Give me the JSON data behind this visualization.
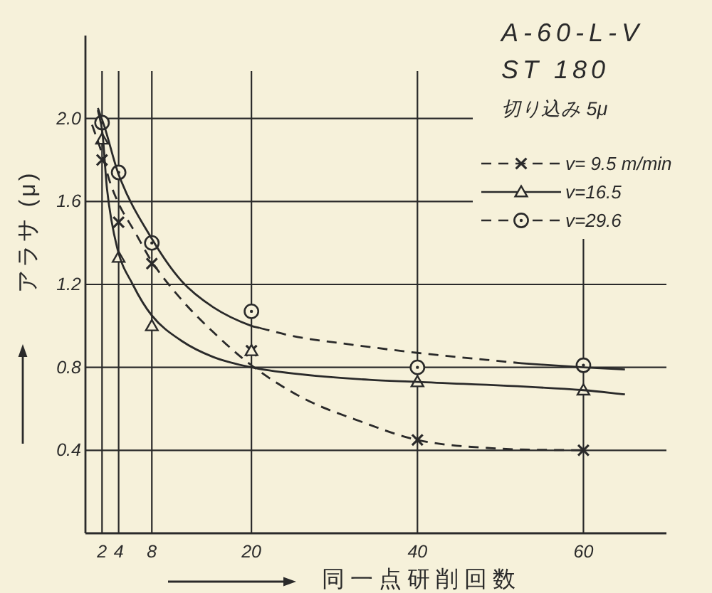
{
  "chart_data": {
    "type": "scatter",
    "title": "A-60-L-V",
    "subtitle": "ST 180",
    "annotations": [
      "切り込み 5μ"
    ],
    "xlabel": "同一点研削回数",
    "ylabel": "アラサ (μ)",
    "x": [
      2,
      4,
      8,
      20,
      40,
      60
    ],
    "xlim": [
      0,
      70
    ],
    "ylim": [
      0,
      2.4
    ],
    "xticks": [
      2,
      4,
      8,
      20,
      40,
      60
    ],
    "yticks": [
      0.4,
      0.8,
      1.2,
      1.6,
      {
        "value": 2,
        "label": "2.0"
      }
    ],
    "grid": true,
    "legend": "top right",
    "series": [
      {
        "name": "v= 9.5 m/min",
        "marker": "cross",
        "line_style": "dashed",
        "color": "#2a2a2a",
        "values": [
          1.8,
          1.5,
          1.3,
          0.88,
          0.45,
          0.4
        ]
      },
      {
        "name": "v=16.5",
        "marker": "triangle",
        "line_style": "solid",
        "color": "#2a2a2a",
        "values": [
          1.9,
          1.33,
          1.0,
          0.88,
          0.73,
          0.69
        ]
      },
      {
        "name": "v=29.6",
        "marker": "circle",
        "line_style": "dashed",
        "color": "#2a2a2a",
        "values": [
          1.98,
          1.74,
          1.4,
          1.07,
          0.8,
          0.81
        ]
      },
      {
        "type": "line",
        "line_style": "dashed",
        "color": "#2a2a2a",
        "x": [
          0.8,
          2,
          2.9,
          4,
          6,
          8,
          11.5,
          15.4,
          20,
          26.3,
          33.1,
          40,
          49,
          60
        ],
        "values": [
          1.97,
          1.83,
          1.7,
          1.59,
          1.45,
          1.31,
          1.13,
          0.97,
          0.81,
          0.65,
          0.54,
          0.45,
          0.41,
          0.4
        ]
      },
      {
        "type": "line",
        "line_style": "solid",
        "color": "#2a2a2a",
        "x": [
          1.5,
          2.05,
          2.6,
          3.8,
          5.7,
          8,
          11.5,
          15.4,
          20,
          25.1,
          34.2,
          40,
          60,
          65
        ],
        "values": [
          2.04,
          1.93,
          1.66,
          1.38,
          1.2,
          1.05,
          0.93,
          0.85,
          0.8,
          0.77,
          0.74,
          0.73,
          0.69,
          0.67
        ]
      },
      {
        "type": "line",
        "line_style": "solid",
        "color": "#2a2a2a",
        "x": [
          1.5,
          2.3,
          4,
          8,
          11.5,
          15.4,
          20,
          21
        ],
        "values": [
          2.05,
          1.96,
          1.73,
          1.42,
          1.22,
          1.09,
          1.0,
          0.99
        ]
      },
      {
        "type": "line",
        "line_style": "dashed",
        "color": "#2a2a2a",
        "x": [
          21,
          25.1,
          32,
          40,
          52.5
        ],
        "values": [
          0.99,
          0.95,
          0.91,
          0.87,
          0.82
        ]
      },
      {
        "type": "line",
        "line_style": "solid",
        "color": "#2a2a2a",
        "x": [
          52.5,
          60,
          65
        ],
        "values": [
          0.82,
          0.8,
          0.79
        ]
      }
    ]
  }
}
